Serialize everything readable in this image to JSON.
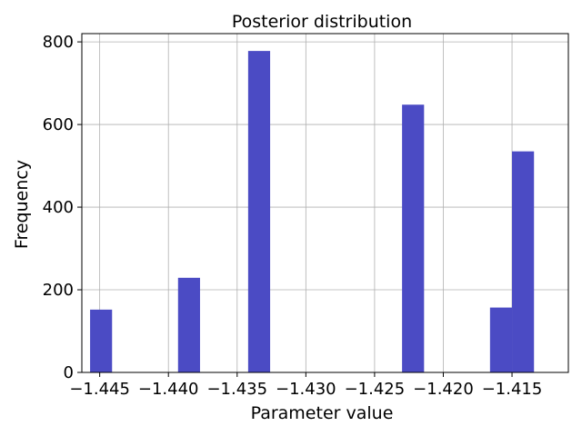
{
  "chart_data": {
    "type": "bar",
    "title": "Posterior distribution",
    "xlabel": "Parameter value",
    "ylabel": "Frequency",
    "xlim": [
      -1.4463,
      -1.4109
    ],
    "ylim": [
      0,
      820
    ],
    "grid": true,
    "bar_color": "#4b4bc4",
    "bar_width": 0.0016,
    "x_ticks": [
      -1.445,
      -1.44,
      -1.435,
      -1.43,
      -1.425,
      -1.42,
      -1.415
    ],
    "x_tick_labels": [
      "−1.445",
      "−1.440",
      "−1.435",
      "−1.430",
      "−1.425",
      "−1.420",
      "−1.415"
    ],
    "y_ticks": [
      0,
      200,
      400,
      600,
      800
    ],
    "y_tick_labels": [
      "0",
      "200",
      "400",
      "600",
      "800"
    ],
    "bins": [
      {
        "x": -1.4449,
        "value": 152
      },
      {
        "x": -1.4385,
        "value": 229
      },
      {
        "x": -1.4334,
        "value": 778
      },
      {
        "x": -1.4222,
        "value": 648
      },
      {
        "x": -1.4158,
        "value": 157
      },
      {
        "x": -1.4142,
        "value": 535
      }
    ]
  }
}
